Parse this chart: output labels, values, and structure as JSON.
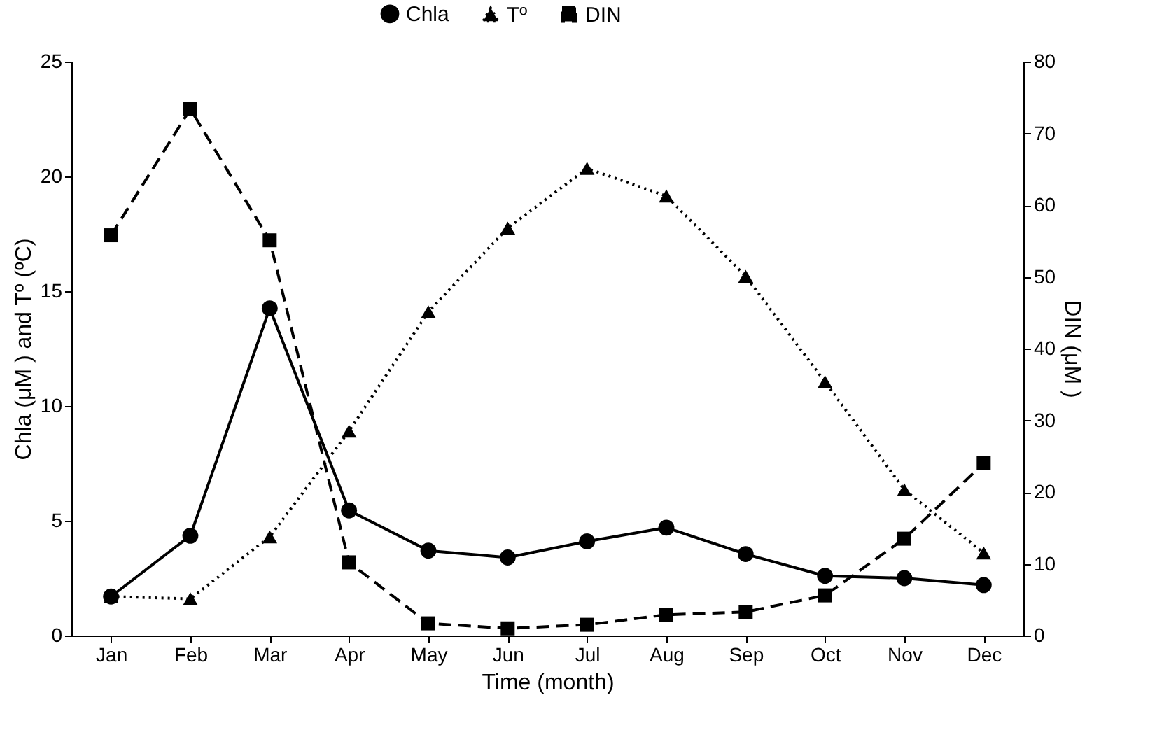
{
  "chart_data": {
    "type": "line",
    "categories": [
      "Jan",
      "Feb",
      "Mar",
      "Apr",
      "May",
      "Jun",
      "Jul",
      "Aug",
      "Sep",
      "Oct",
      "Nov",
      "Dec"
    ],
    "series": [
      {
        "name": "Chla",
        "color": "#000000",
        "marker": "circle",
        "line_style": "solid",
        "values": [
          1.7,
          4.35,
          14.25,
          5.45,
          3.7,
          3.4,
          4.1,
          4.7,
          3.55,
          2.6,
          2.5,
          2.2
        ]
      },
      {
        "name": "Tº",
        "color": "#000000",
        "marker": "triangle",
        "line_style": "dotted",
        "values": [
          1.7,
          1.6,
          4.3,
          8.9,
          14.1,
          17.75,
          20.35,
          19.15,
          15.65,
          11.05,
          6.35,
          3.6
        ]
      },
      {
        "name": "DIN",
        "color": "#000000",
        "marker": "square",
        "line_style": "dashed",
        "axis": "y2",
        "values": [
          55.8,
          73.4,
          55.1,
          10.2,
          1.7,
          1.0,
          1.5,
          2.9,
          3.3,
          5.6,
          13.5,
          24
        ]
      }
    ],
    "xlabel": "Time (month)",
    "ylabel": "Chla (μM ) and Tº (ºC)",
    "y2label": "DIN (μM )",
    "ylim": [
      0,
      25
    ],
    "yticks": [
      0,
      5,
      10,
      15,
      20,
      25
    ],
    "y2lim": [
      0,
      80
    ],
    "y2ticks": [
      0,
      10,
      20,
      30,
      40,
      50,
      60,
      70,
      80
    ],
    "legend": "top",
    "grid": false
  }
}
